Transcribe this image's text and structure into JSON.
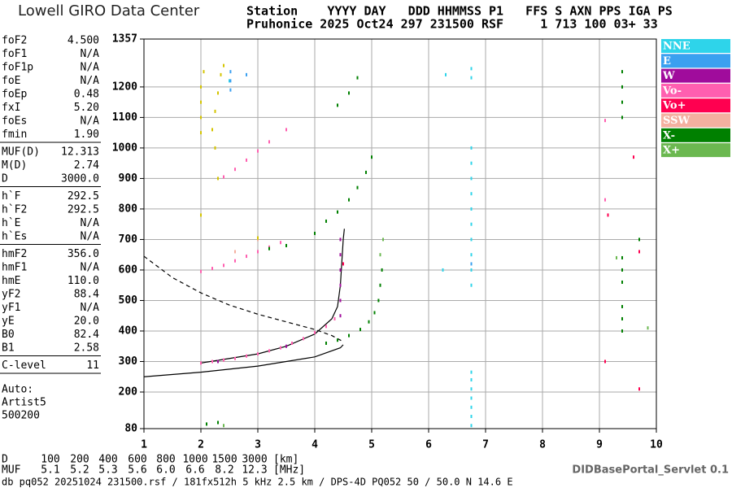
{
  "header": {
    "logo": "Lowell GIRO Data Center",
    "line1": "Station    YYYY DAY   DDD HHMMSS P1   FFS S AXN PPS IGA PS",
    "line2": "Pruhonice 2025 Oct24 297 231500 RSF     1 713 100 03+ 33"
  },
  "parameters": [
    [
      {
        "name": "foF2",
        "value": "4.500"
      },
      {
        "name": "foF1",
        "value": "N/A"
      },
      {
        "name": "foF1p",
        "value": "N/A"
      },
      {
        "name": "foE",
        "value": "N/A"
      },
      {
        "name": "foEp",
        "value": "0.48"
      },
      {
        "name": "fxI",
        "value": "5.20"
      },
      {
        "name": "foEs",
        "value": "N/A"
      },
      {
        "name": "fmin",
        "value": "1.90"
      }
    ],
    [
      {
        "name": "MUF(D)",
        "value": "12.313"
      },
      {
        "name": "M(D)",
        "value": "2.74"
      },
      {
        "name": "D",
        "value": "3000.0"
      }
    ],
    [
      {
        "name": "h`F",
        "value": "292.5"
      },
      {
        "name": "h`F2",
        "value": "292.5"
      },
      {
        "name": "h`E",
        "value": "N/A"
      },
      {
        "name": "h`Es",
        "value": "N/A"
      }
    ],
    [
      {
        "name": "hmF2",
        "value": "356.0"
      },
      {
        "name": "hmF1",
        "value": "N/A"
      },
      {
        "name": "hmE",
        "value": "110.0"
      },
      {
        "name": "yF2",
        "value": "88.4"
      },
      {
        "name": "yF1",
        "value": "N/A"
      },
      {
        "name": "yE",
        "value": "20.0"
      },
      {
        "name": "B0",
        "value": "82.4"
      },
      {
        "name": "B1",
        "value": "2.58"
      }
    ],
    [
      {
        "name": "C-level",
        "value": "11"
      }
    ]
  ],
  "notes": [
    "Auto:",
    "Artist5",
    "500200"
  ],
  "muf_table": {
    "d_label": "D",
    "d_values": [
      "100",
      "200",
      "400",
      "600",
      "800",
      "1000",
      "1500",
      "3000"
    ],
    "d_unit": "[km]",
    "muf_label": "MUF",
    "muf_values": [
      "5.1",
      "5.2",
      "5.3",
      "5.6",
      "6.0",
      "6.6",
      "8.2",
      "12.3"
    ],
    "muf_unit": "[MHz]"
  },
  "servlet": "DIDBasePortal_Servlet 0.1",
  "footer": "db pq052 20251024 231500.rsf / 181fx512h 5 kHz 2.5 km / DPS-4D PQ052 50 / 50.0 N 14.6 E",
  "chart_data": {
    "type": "scatter",
    "grid": true,
    "xlim": [
      1,
      10
    ],
    "ylim": [
      80,
      1357
    ],
    "xticks": [
      1,
      2,
      3,
      4,
      5,
      6,
      7,
      8,
      9,
      10
    ],
    "yticks": [
      80,
      200,
      300,
      400,
      500,
      600,
      700,
      800,
      900,
      1000,
      1100,
      1200,
      1357
    ],
    "series": [
      {
        "name": "NNE",
        "color": "#2ed4ea",
        "x": [
          6.75,
          6.75,
          6.75,
          6.75,
          6.75,
          6.75,
          6.75,
          6.75,
          6.75,
          6.75,
          6.75,
          6.75,
          6.75,
          6.75,
          6.75,
          6.75,
          6.75,
          6.75,
          6.75,
          6.3,
          6.25,
          2.5
        ],
        "values": [
          90,
          120,
          150,
          180,
          210,
          240,
          265,
          550,
          600,
          650,
          700,
          750,
          800,
          850,
          900,
          950,
          1000,
          1230,
          1260,
          1240,
          600,
          1220
        ]
      },
      {
        "name": "E",
        "color": "#3aa0f0",
        "x": [
          2.52,
          2.52,
          2.52,
          6.75,
          2.8
        ],
        "values": [
          1190,
          1220,
          1250,
          620,
          1240
        ]
      },
      {
        "name": "W",
        "color": "#a00c9c",
        "x": [
          4.45,
          4.45,
          4.45,
          4.45,
          4.45,
          4.45,
          3.5,
          2.3
        ],
        "values": [
          450,
          500,
          550,
          600,
          650,
          700,
          350,
          300
        ]
      },
      {
        "name": "Vo-",
        "color": "#ff5fb0",
        "x": [
          2.0,
          2.2,
          2.4,
          2.6,
          2.8,
          3.0,
          3.2,
          3.4,
          3.6,
          3.8,
          4.0,
          4.2,
          4.35,
          2.0,
          2.2,
          2.4,
          2.6,
          2.8,
          3.0,
          3.2,
          3.4,
          2.4,
          2.6,
          2.8,
          3.0,
          3.2,
          3.5,
          9.1,
          9.1
        ],
        "values": [
          295,
          300,
          305,
          310,
          318,
          325,
          335,
          345,
          360,
          375,
          395,
          415,
          440,
          595,
          605,
          615,
          630,
          645,
          660,
          675,
          690,
          905,
          930,
          960,
          990,
          1020,
          1060,
          1090,
          830
        ]
      },
      {
        "name": "Vo+",
        "color": "#ff0050",
        "x": [
          9.15,
          9.6,
          9.7,
          9.7,
          4.5,
          9.1
        ],
        "values": [
          780,
          970,
          660,
          210,
          620,
          300
        ]
      },
      {
        "name": "SSW",
        "color": "#f4b0a0",
        "x": [
          3.0,
          2.6
        ],
        "values": [
          700,
          660
        ]
      },
      {
        "name": "X-",
        "color": "#008000",
        "x": [
          4.2,
          4.4,
          4.6,
          4.8,
          4.95,
          5.05,
          5.12,
          5.15,
          5.18,
          4.0,
          4.2,
          4.4,
          4.6,
          4.75,
          4.9,
          5.0,
          4.4,
          4.6,
          4.75,
          9.4,
          9.4,
          9.4,
          9.4,
          9.4,
          9.4,
          9.4,
          9.4,
          9.4,
          9.4,
          9.7,
          3.2,
          3.5,
          2.3,
          2.1
        ],
        "values": [
          360,
          370,
          385,
          405,
          430,
          460,
          500,
          550,
          600,
          720,
          760,
          790,
          830,
          870,
          920,
          970,
          1140,
          1180,
          1230,
          1100,
          1150,
          1200,
          1250,
          560,
          600,
          640,
          400,
          440,
          480,
          700,
          670,
          680,
          100,
          95
        ]
      },
      {
        "name": "X+",
        "color": "#6bb850",
        "x": [
          5.15,
          5.2,
          9.3,
          2.4,
          9.85
        ],
        "values": [
          650,
          700,
          640,
          90,
          410
        ]
      },
      {
        "color": "#d4c400",
        "x": [
          2.0,
          2.0,
          2.0,
          2.0,
          2.05,
          2.2,
          2.25,
          2.3,
          2.35,
          2.4,
          2.25,
          3.0,
          2.0,
          2.3
        ],
        "values": [
          1050,
          1100,
          1150,
          1200,
          1250,
          1060,
          1120,
          1180,
          1240,
          1270,
          1000,
          705,
          780,
          900
        ]
      }
    ],
    "curves": [
      {
        "color": "#000000",
        "dashed": false,
        "x": [
          2,
          2.5,
          3,
          3.5,
          4,
          4.3,
          4.4,
          4.45,
          4.5,
          4.52
        ],
        "values": [
          295,
          310,
          325,
          350,
          390,
          440,
          480,
          550,
          700,
          735
        ]
      },
      {
        "color": "#000000",
        "dashed": false,
        "x": [
          1,
          2,
          3,
          4,
          4.45,
          4.5
        ],
        "values": [
          250,
          265,
          285,
          315,
          345,
          355
        ]
      },
      {
        "color": "#000000",
        "dashed": true,
        "x": [
          1,
          1.5,
          2,
          2.5,
          3,
          3.5,
          4,
          4.3,
          4.5
        ],
        "values": [
          645,
          575,
          525,
          485,
          455,
          430,
          405,
          385,
          365
        ]
      }
    ]
  }
}
